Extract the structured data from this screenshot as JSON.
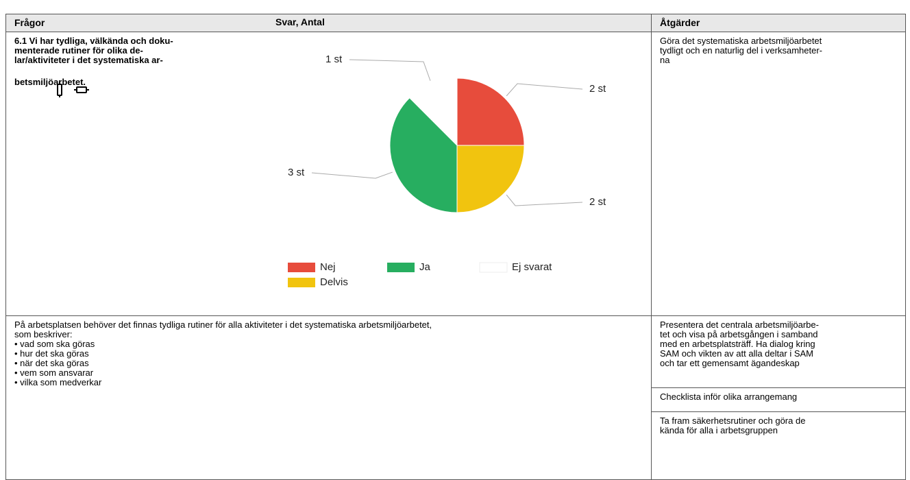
{
  "table": {
    "header": [
      "Frågor",
      "Svar, Antal",
      "Åtgärder"
    ],
    "rows": [
      {
        "question": [
          "6.1 Vi har tydliga, välkända och doku-",
          "menterade rutiner för olika de-",
          "lar/aktiviteter i det systematiska ar-",
          "betsmiljöarbetet."
        ],
        "actions": [
          [
            "Göra det systematiska arbetsmiljöarbetet",
            "tydligt och en naturlig del i verksamheter-",
            "na"
          ]
        ]
      },
      {
        "text": [
          "På arbetsplatsen behöver det finnas tydliga rutiner för alla aktiviteter i det systematiska arbetsmiljöarbetet,",
          "som beskriver:",
          "• vad som ska göras",
          "• hur det ska göras",
          "• när det ska göras",
          "• vem som ansvarar",
          "• vilka som medverkar"
        ],
        "actions": [
          [
            "Presentera det centrala arbetsmiljöarbe-",
            "tet och visa på arbetsgången i samband",
            "med en arbetsplatsträff. Ha dialog kring",
            "SAM och vikten av att alla deltar i SAM",
            "och tar ett gemensamt ägandeskap"
          ],
          [
            "Checklista inför olika arrangemang"
          ],
          [
            "Ta fram säkerhetsrutiner och göra de",
            "kända för alla i arbetsgruppen"
          ]
        ]
      }
    ]
  },
  "chart_data": {
    "type": "pie",
    "categories": [
      "Nej",
      "Delvis",
      "Ja",
      "Ej svarat"
    ],
    "values": [
      2,
      2,
      3,
      1
    ],
    "value_labels": [
      "2 st",
      "2 st",
      "3 st",
      "1 st"
    ],
    "colors": [
      "#e74c3c",
      "#f1c40f",
      "#27ae60",
      "#ffffff"
    ],
    "legend": "bottom"
  }
}
